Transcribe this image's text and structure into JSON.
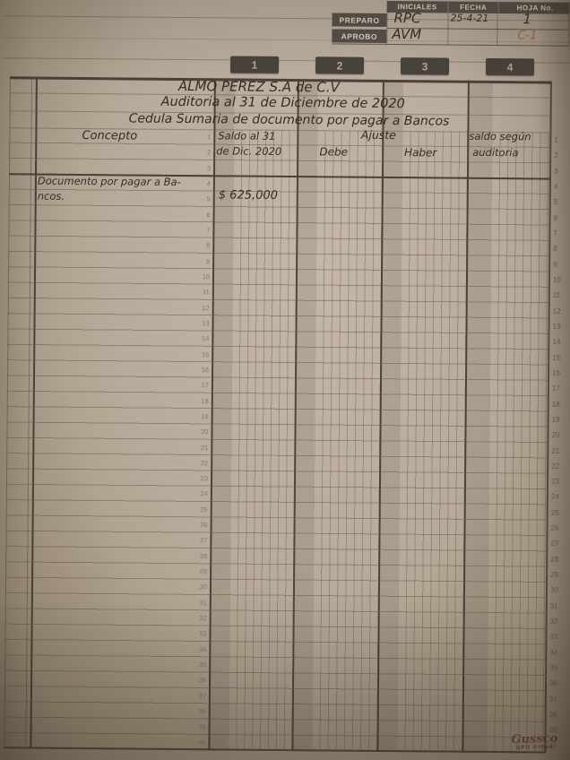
{
  "approval_box": {
    "columns": [
      "INICIALES",
      "FECHA",
      "HOJA No."
    ],
    "rows": [
      {
        "label": "PREPARO",
        "iniciales": "RPC",
        "fecha": "25-4-21",
        "hoja": "1"
      },
      {
        "label": "APROBO",
        "iniciales": "AVM",
        "fecha": "",
        "hoja": "C-1"
      }
    ]
  },
  "column_badges": [
    "1",
    "2",
    "3",
    "4"
  ],
  "title": {
    "company": "ALMO PEREZ S.A de C.V",
    "audit_line": "Auditoria al 31 de Diciembre de 2020",
    "cedula_line": "Cedula Sumaria de documento por pagar a Bancos"
  },
  "worksheet": {
    "concepto_header": "Concepto",
    "col1_header_line1": "Saldo al 31",
    "col1_header_line2": "de Dic. 2020",
    "ajuste_header": "Ajuste",
    "debe_header": "Debe",
    "haber_header": "Haber",
    "col4_header_line1": "saldo según",
    "col4_header_line2": "auditoria",
    "entry": {
      "concepto_line1": "Documento por pagar a Ba-",
      "concepto_line2": "ncos.",
      "saldo_value": "$ 625,000"
    }
  },
  "row_numbers": [
    1,
    2,
    3,
    4,
    5,
    6,
    7,
    8,
    9,
    10,
    11,
    12,
    13,
    14,
    15,
    16,
    17,
    18,
    19,
    20,
    21,
    22,
    23,
    24,
    25,
    26,
    27,
    28,
    29,
    30,
    31,
    32,
    33,
    34,
    35,
    36,
    37,
    38,
    39,
    40
  ],
  "brand": {
    "name": "Gussco",
    "subtitle": "GPO Office"
  },
  "colors": {
    "ink": "#332c26",
    "red_ink": "#9c4f44",
    "label_background": "#564f49",
    "label_text": "#ded5c6",
    "grid_heavy_line": "#4a4138",
    "paper": "#b9ab9b"
  }
}
